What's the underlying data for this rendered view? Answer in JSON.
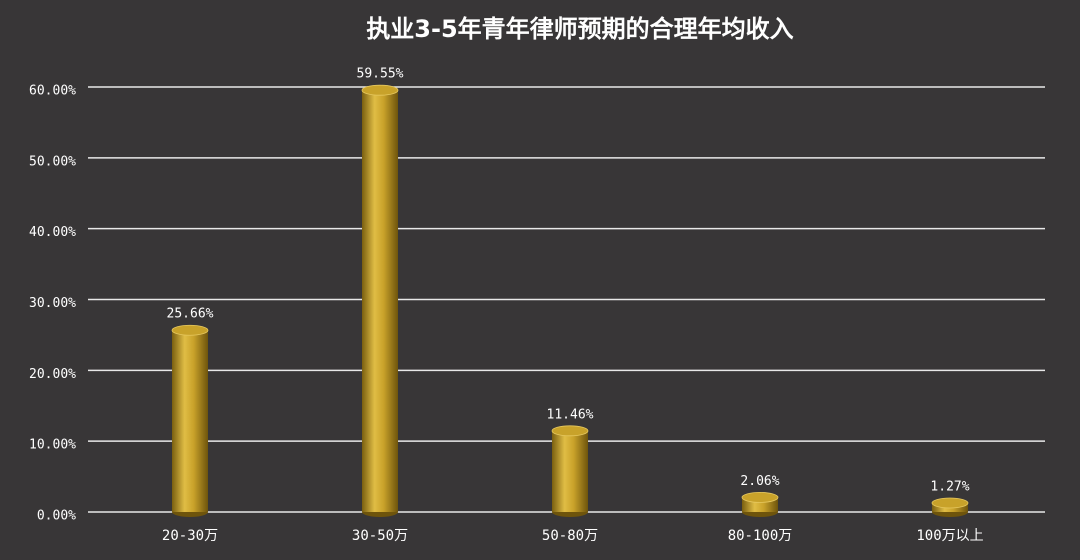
{
  "chart_data": {
    "type": "bar",
    "title": "执业3-5年青年律师预期的合理年均收入",
    "categories": [
      "20-30万",
      "30-50万",
      "50-80万",
      "80-100万",
      "100万以上"
    ],
    "values": [
      25.66,
      59.55,
      11.46,
      2.06,
      1.27
    ],
    "value_labels": [
      "25.66%",
      "59.55%",
      "11.46%",
      "2.06%",
      "1.27%"
    ],
    "color": "#c8a22a",
    "ylim": [
      0,
      60
    ],
    "yticks": [
      {
        "value": 0,
        "label": "0.00%"
      },
      {
        "value": 10,
        "label": "10.00%"
      },
      {
        "value": 20,
        "label": "20.00%"
      },
      {
        "value": 30,
        "label": "30.00%"
      },
      {
        "value": 40,
        "label": "40.00%"
      },
      {
        "value": 50,
        "label": "50.00%"
      },
      {
        "value": 60,
        "label": "60.00%"
      }
    ],
    "grid": true
  }
}
